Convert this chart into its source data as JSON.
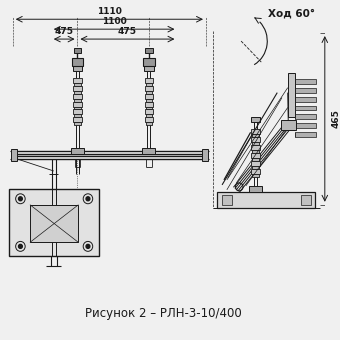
{
  "title": "Рисунок 2 – РЛН-3-10/400",
  "title_fontsize": 8.5,
  "bg_color": "#f0f0f0",
  "line_color": "#1a1a1a",
  "dim_color": "#1a1a1a",
  "dim_1110": "1110",
  "dim_1100": "1100",
  "dim_475L": "475",
  "dim_475R": "475",
  "dim_465": "465",
  "label_khod": "Ход 60°"
}
